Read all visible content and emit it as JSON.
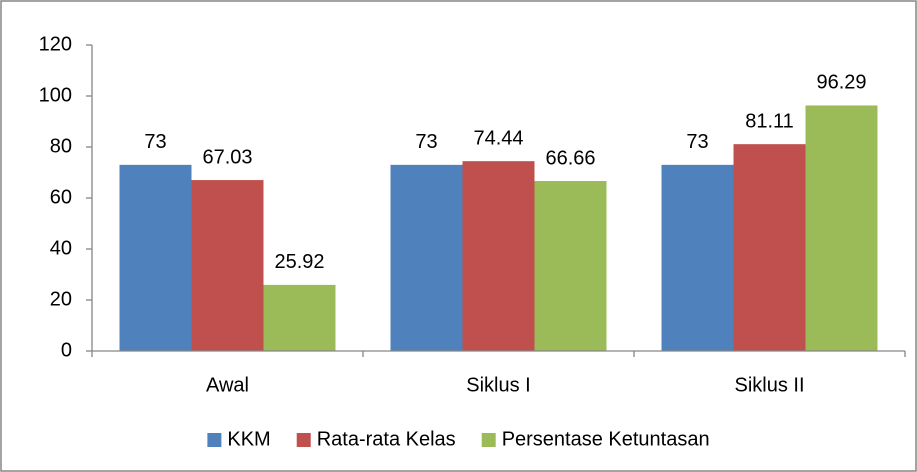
{
  "chart_data": {
    "type": "bar",
    "categories": [
      "Awal",
      "Siklus I",
      "Siklus II"
    ],
    "series": [
      {
        "name": "KKM",
        "color": "#4f81bd",
        "values": [
          73,
          73,
          73
        ]
      },
      {
        "name": "Rata-rata Kelas",
        "color": "#c0504d",
        "values": [
          67.03,
          74.44,
          81.11
        ]
      },
      {
        "name": "Persentase Ketuntasan",
        "color": "#9bbb59",
        "values": [
          25.92,
          66.66,
          96.29
        ]
      }
    ],
    "ylim": [
      0,
      120
    ],
    "yticks": [
      0,
      20,
      40,
      60,
      80,
      100,
      120
    ],
    "grid": false,
    "legend": "bottom"
  }
}
